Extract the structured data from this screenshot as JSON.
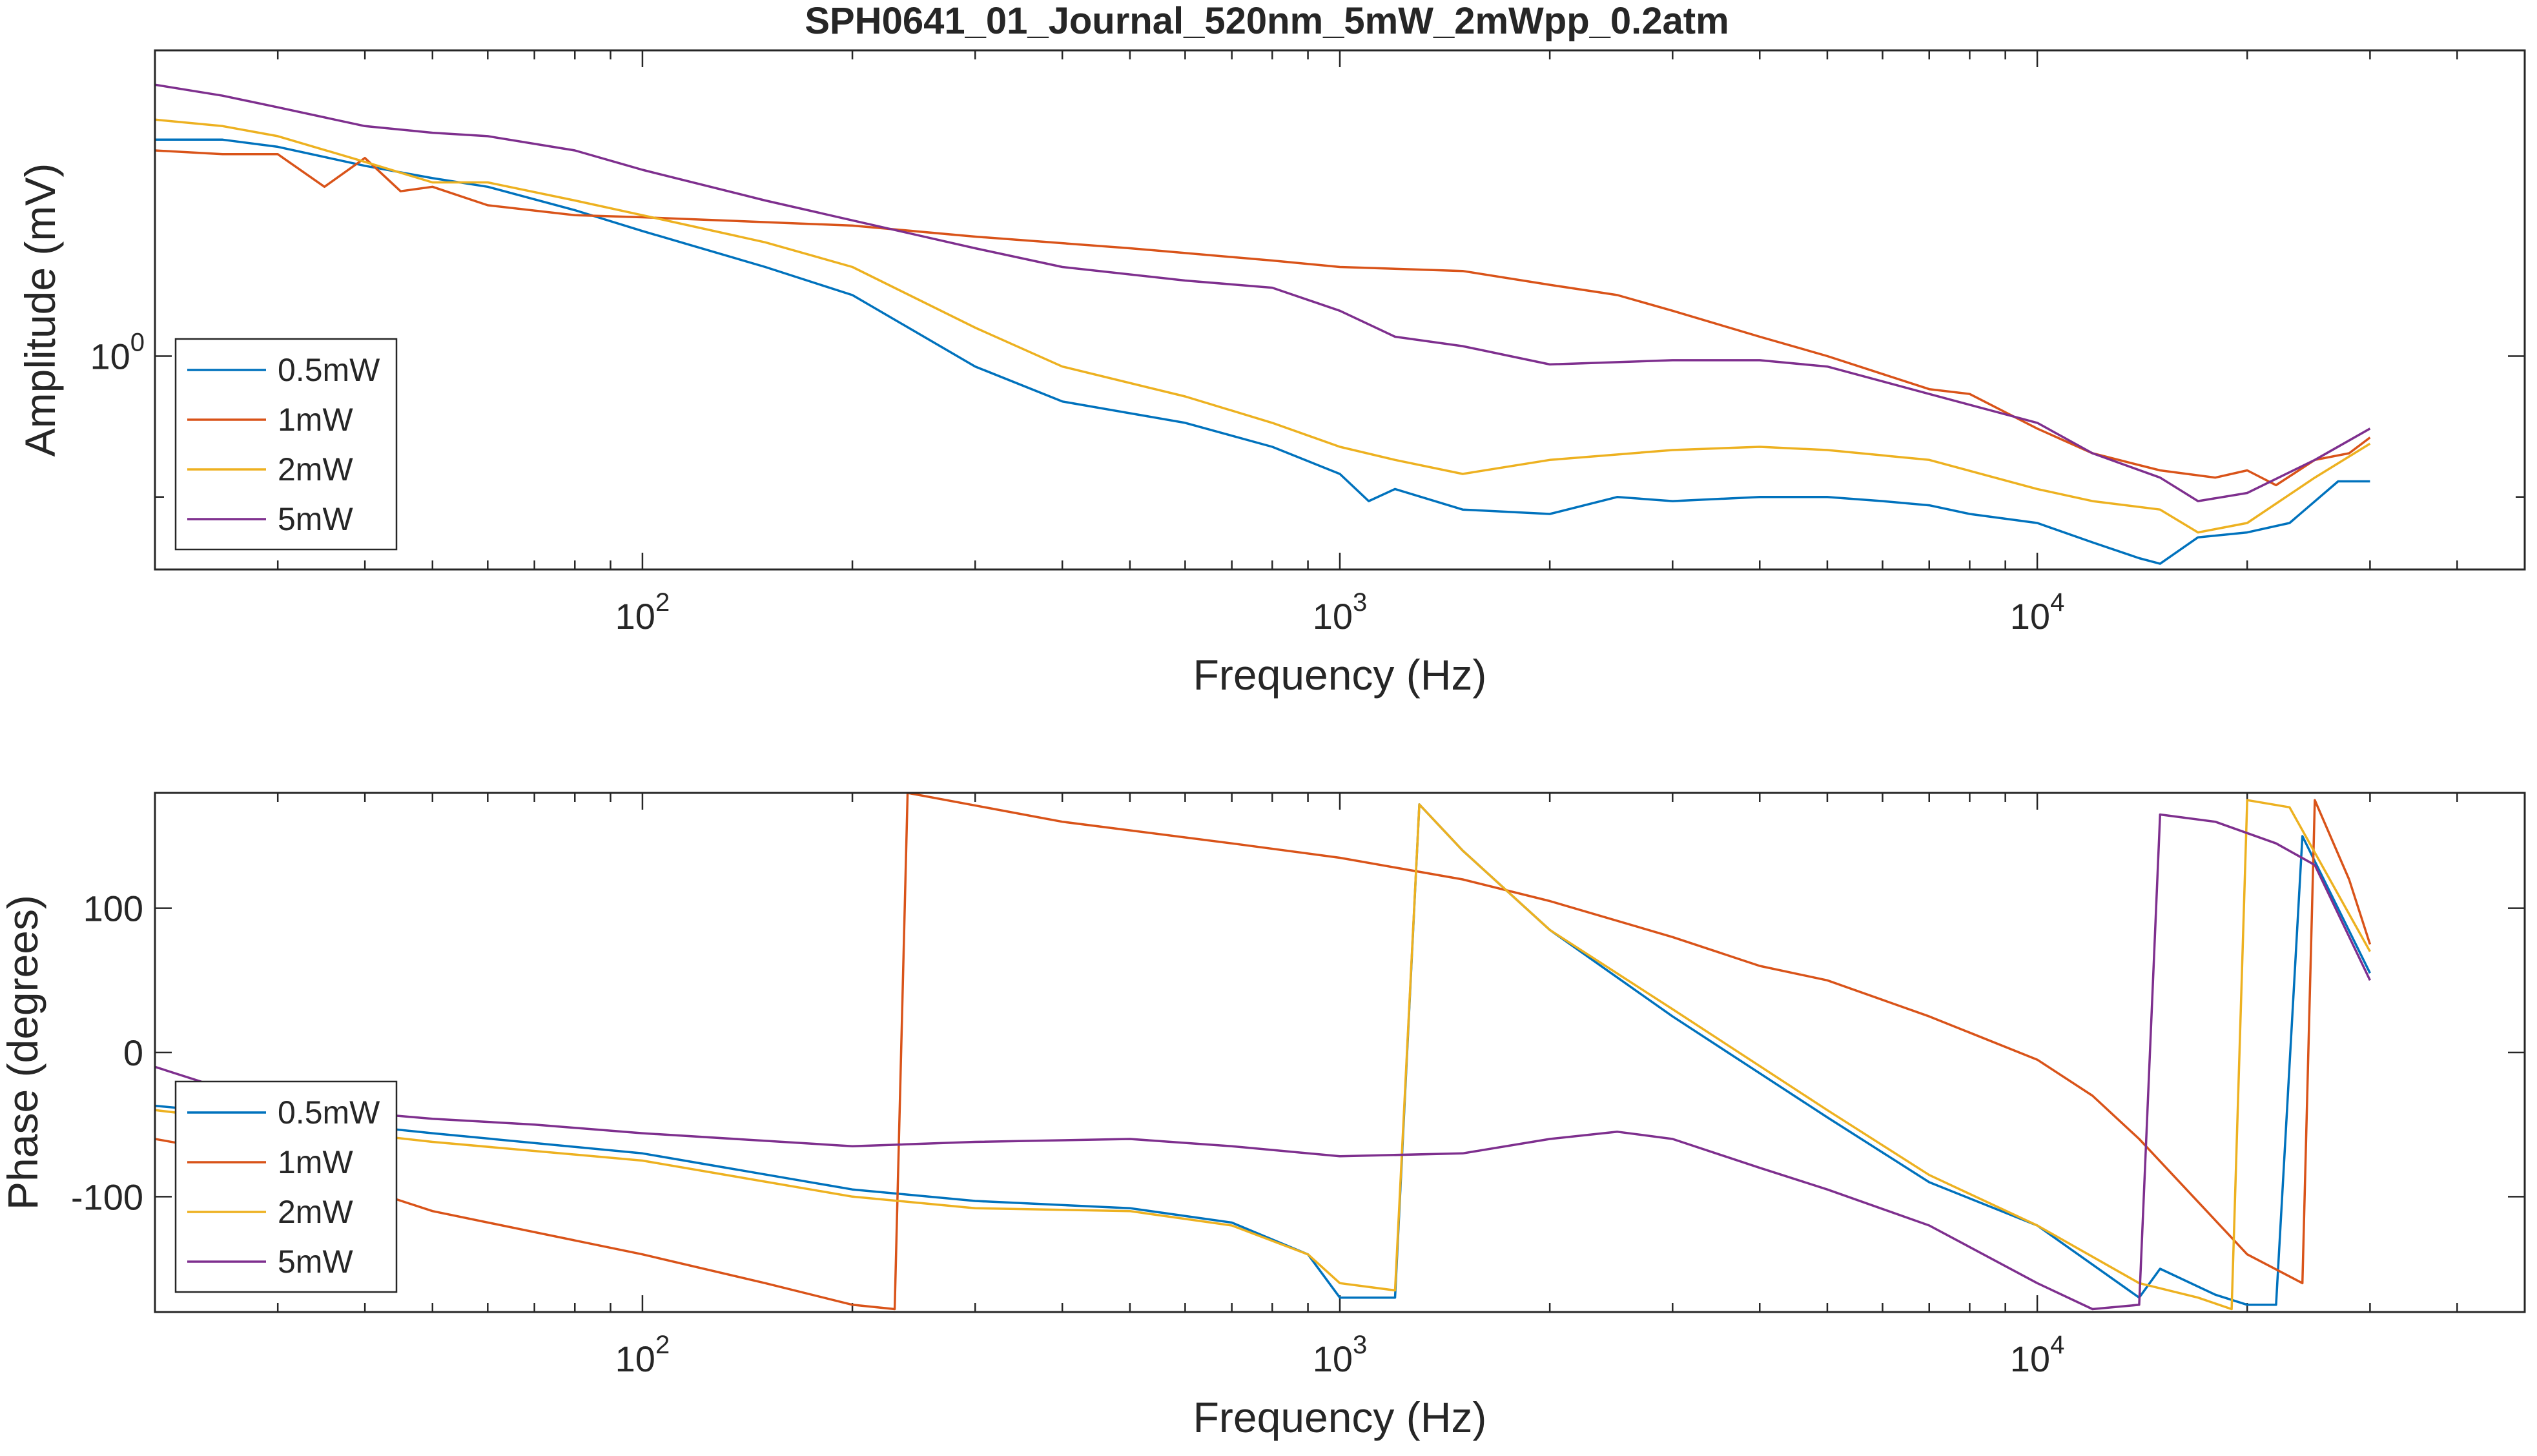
{
  "chart_data": [
    {
      "type": "line",
      "title": "SPH0641_01_Journal_520nm_5mW_2mWpp_0.2atm",
      "xlabel": "Frequency (Hz)",
      "ylabel": "Amplitude (mV)",
      "xscale": "log",
      "yscale": "log",
      "xlim": [
        20,
        50000
      ],
      "ylim": [
        0.35,
        4.5
      ],
      "xticks": [
        {
          "value": 100,
          "base": "10",
          "exp": "2"
        },
        {
          "value": 1000,
          "base": "10",
          "exp": "3"
        },
        {
          "value": 10000,
          "base": "10",
          "exp": "4"
        }
      ],
      "yticks": [
        {
          "value": 1,
          "base": "10",
          "exp": "0"
        }
      ],
      "legend_position": "bottom-left",
      "series": [
        {
          "name": "0.5mW",
          "color": "#0072BD",
          "points": [
            [
              20,
              2.9
            ],
            [
              25,
              2.9
            ],
            [
              30,
              2.8
            ],
            [
              40,
              2.55
            ],
            [
              50,
              2.4
            ],
            [
              60,
              2.3
            ],
            [
              80,
              2.05
            ],
            [
              100,
              1.85
            ],
            [
              150,
              1.55
            ],
            [
              200,
              1.35
            ],
            [
              300,
              0.95
            ],
            [
              400,
              0.8
            ],
            [
              600,
              0.72
            ],
            [
              800,
              0.64
            ],
            [
              1000,
              0.56
            ],
            [
              1100,
              0.49
            ],
            [
              1200,
              0.52
            ],
            [
              1500,
              0.47
            ],
            [
              2000,
              0.46
            ],
            [
              2500,
              0.5
            ],
            [
              3000,
              0.49
            ],
            [
              4000,
              0.5
            ],
            [
              5000,
              0.5
            ],
            [
              6000,
              0.49
            ],
            [
              7000,
              0.48
            ],
            [
              8000,
              0.46
            ],
            [
              10000,
              0.44
            ],
            [
              12000,
              0.4
            ],
            [
              14000,
              0.37
            ],
            [
              15000,
              0.36
            ],
            [
              17000,
              0.41
            ],
            [
              20000,
              0.42
            ],
            [
              23000,
              0.44
            ],
            [
              27000,
              0.54
            ],
            [
              30000,
              0.54
            ]
          ]
        },
        {
          "name": "1mW",
          "color": "#D95319",
          "points": [
            [
              20,
              2.75
            ],
            [
              25,
              2.7
            ],
            [
              30,
              2.7
            ],
            [
              35,
              2.3
            ],
            [
              40,
              2.65
            ],
            [
              45,
              2.25
            ],
            [
              50,
              2.3
            ],
            [
              60,
              2.1
            ],
            [
              80,
              2.0
            ],
            [
              100,
              1.98
            ],
            [
              200,
              1.9
            ],
            [
              300,
              1.8
            ],
            [
              500,
              1.7
            ],
            [
              800,
              1.6
            ],
            [
              1000,
              1.55
            ],
            [
              1500,
              1.52
            ],
            [
              2000,
              1.42
            ],
            [
              2500,
              1.35
            ],
            [
              3000,
              1.25
            ],
            [
              4000,
              1.1
            ],
            [
              5000,
              1.0
            ],
            [
              7000,
              0.85
            ],
            [
              8000,
              0.83
            ],
            [
              10000,
              0.7
            ],
            [
              12000,
              0.62
            ],
            [
              15000,
              0.57
            ],
            [
              18000,
              0.55
            ],
            [
              20000,
              0.57
            ],
            [
              22000,
              0.53
            ],
            [
              25000,
              0.6
            ],
            [
              28000,
              0.62
            ],
            [
              30000,
              0.67
            ]
          ]
        },
        {
          "name": "2mW",
          "color": "#EDB120",
          "points": [
            [
              20,
              3.2
            ],
            [
              25,
              3.1
            ],
            [
              30,
              2.95
            ],
            [
              40,
              2.6
            ],
            [
              50,
              2.35
            ],
            [
              60,
              2.35
            ],
            [
              80,
              2.15
            ],
            [
              100,
              2.0
            ],
            [
              150,
              1.75
            ],
            [
              200,
              1.55
            ],
            [
              300,
              1.15
            ],
            [
              400,
              0.95
            ],
            [
              600,
              0.82
            ],
            [
              800,
              0.72
            ],
            [
              1000,
              0.64
            ],
            [
              1200,
              0.6
            ],
            [
              1500,
              0.56
            ],
            [
              2000,
              0.6
            ],
            [
              3000,
              0.63
            ],
            [
              4000,
              0.64
            ],
            [
              5000,
              0.63
            ],
            [
              7000,
              0.6
            ],
            [
              10000,
              0.52
            ],
            [
              12000,
              0.49
            ],
            [
              15000,
              0.47
            ],
            [
              17000,
              0.42
            ],
            [
              20000,
              0.44
            ],
            [
              25000,
              0.55
            ],
            [
              30000,
              0.65
            ]
          ]
        },
        {
          "name": "5mW",
          "color": "#7E2F8E",
          "points": [
            [
              20,
              3.8
            ],
            [
              25,
              3.6
            ],
            [
              30,
              3.4
            ],
            [
              40,
              3.1
            ],
            [
              50,
              3.0
            ],
            [
              60,
              2.95
            ],
            [
              80,
              2.75
            ],
            [
              100,
              2.5
            ],
            [
              150,
              2.15
            ],
            [
              200,
              1.95
            ],
            [
              300,
              1.7
            ],
            [
              400,
              1.55
            ],
            [
              600,
              1.45
            ],
            [
              800,
              1.4
            ],
            [
              1000,
              1.25
            ],
            [
              1200,
              1.1
            ],
            [
              1500,
              1.05
            ],
            [
              2000,
              0.96
            ],
            [
              3000,
              0.98
            ],
            [
              4000,
              0.98
            ],
            [
              5000,
              0.95
            ],
            [
              7000,
              0.83
            ],
            [
              10000,
              0.72
            ],
            [
              12000,
              0.62
            ],
            [
              15000,
              0.55
            ],
            [
              17000,
              0.49
            ],
            [
              20000,
              0.51
            ],
            [
              25000,
              0.6
            ],
            [
              30000,
              0.7
            ]
          ]
        }
      ]
    },
    {
      "type": "line",
      "title": "",
      "xlabel": "Frequency (Hz)",
      "ylabel": "Phase (degrees)",
      "xscale": "log",
      "yscale": "linear",
      "xlim": [
        20,
        50000
      ],
      "ylim": [
        -180,
        180
      ],
      "xticks": [
        {
          "value": 100,
          "base": "10",
          "exp": "2"
        },
        {
          "value": 1000,
          "base": "10",
          "exp": "3"
        },
        {
          "value": 10000,
          "base": "10",
          "exp": "4"
        }
      ],
      "yticks": [
        {
          "value": 100,
          "label": "100"
        },
        {
          "value": 0,
          "label": "0"
        },
        {
          "value": -100,
          "label": "-100"
        }
      ],
      "legend_position": "bottom-left",
      "series": [
        {
          "name": "0.5mW",
          "color": "#0072BD",
          "points": [
            [
              20,
              -37
            ],
            [
              30,
              -45
            ],
            [
              50,
              -56
            ],
            [
              100,
              -70
            ],
            [
              200,
              -95
            ],
            [
              300,
              -103
            ],
            [
              500,
              -108
            ],
            [
              700,
              -118
            ],
            [
              900,
              -140
            ],
            [
              1000,
              -170
            ],
            [
              1200,
              -170
            ],
            [
              1300,
              172
            ],
            [
              1500,
              140
            ],
            [
              2000,
              85
            ],
            [
              3000,
              25
            ],
            [
              5000,
              -45
            ],
            [
              7000,
              -90
            ],
            [
              10000,
              -120
            ],
            [
              14000,
              -170
            ],
            [
              15000,
              -150
            ],
            [
              18000,
              -168
            ],
            [
              20000,
              -175
            ],
            [
              22000,
              -175
            ],
            [
              24000,
              150
            ],
            [
              30000,
              55
            ]
          ]
        },
        {
          "name": "1mW",
          "color": "#D95319",
          "points": [
            [
              20,
              -60
            ],
            [
              30,
              -75
            ],
            [
              50,
              -110
            ],
            [
              100,
              -140
            ],
            [
              150,
              -160
            ],
            [
              200,
              -175
            ],
            [
              230,
              -178
            ],
            [
              240,
              180
            ],
            [
              400,
              160
            ],
            [
              700,
              145
            ],
            [
              1000,
              135
            ],
            [
              1500,
              120
            ],
            [
              2000,
              105
            ],
            [
              3000,
              80
            ],
            [
              4000,
              60
            ],
            [
              5000,
              50
            ],
            [
              7000,
              25
            ],
            [
              10000,
              -5
            ],
            [
              12000,
              -30
            ],
            [
              14000,
              -60
            ],
            [
              20000,
              -140
            ],
            [
              24000,
              -160
            ],
            [
              25000,
              175
            ],
            [
              28000,
              120
            ],
            [
              30000,
              75
            ]
          ]
        },
        {
          "name": "2mW",
          "color": "#EDB120",
          "points": [
            [
              20,
              -40
            ],
            [
              30,
              -50
            ],
            [
              50,
              -62
            ],
            [
              100,
              -75
            ],
            [
              200,
              -100
            ],
            [
              300,
              -108
            ],
            [
              500,
              -110
            ],
            [
              700,
              -120
            ],
            [
              900,
              -140
            ],
            [
              1000,
              -160
            ],
            [
              1200,
              -165
            ],
            [
              1300,
              172
            ],
            [
              1500,
              140
            ],
            [
              2000,
              85
            ],
            [
              3000,
              30
            ],
            [
              5000,
              -40
            ],
            [
              7000,
              -85
            ],
            [
              10000,
              -120
            ],
            [
              14000,
              -160
            ],
            [
              17000,
              -170
            ],
            [
              19000,
              -178
            ],
            [
              20000,
              175
            ],
            [
              23000,
              170
            ],
            [
              30000,
              70
            ]
          ]
        },
        {
          "name": "5mW",
          "color": "#7E2F8E",
          "points": [
            [
              20,
              -10
            ],
            [
              25,
              -25
            ],
            [
              30,
              -35
            ],
            [
              40,
              -42
            ],
            [
              50,
              -46
            ],
            [
              70,
              -50
            ],
            [
              100,
              -56
            ],
            [
              200,
              -65
            ],
            [
              300,
              -62
            ],
            [
              500,
              -60
            ],
            [
              700,
              -65
            ],
            [
              1000,
              -72
            ],
            [
              1500,
              -70
            ],
            [
              2000,
              -60
            ],
            [
              2500,
              -55
            ],
            [
              3000,
              -60
            ],
            [
              4000,
              -80
            ],
            [
              5000,
              -95
            ],
            [
              7000,
              -120
            ],
            [
              10000,
              -160
            ],
            [
              12000,
              -178
            ],
            [
              14000,
              -175
            ],
            [
              15000,
              165
            ],
            [
              18000,
              160
            ],
            [
              22000,
              145
            ],
            [
              25000,
              130
            ],
            [
              30000,
              50
            ]
          ]
        }
      ]
    }
  ]
}
